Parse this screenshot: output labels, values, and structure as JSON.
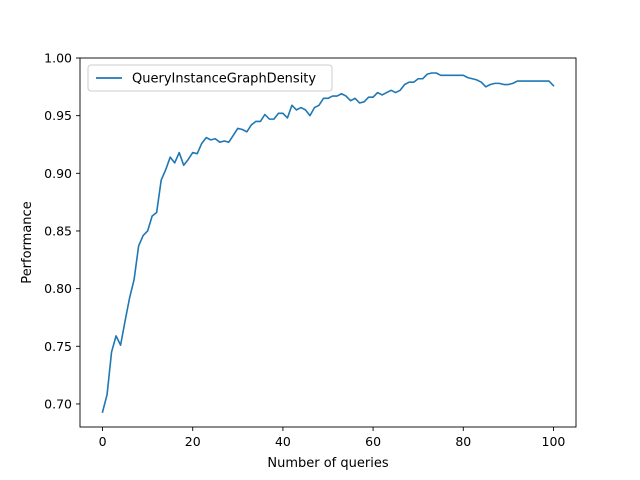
{
  "chart_data": {
    "type": "line",
    "title": "",
    "xlabel": "Number of queries",
    "ylabel": "Performance",
    "xlim": [
      -5,
      105
    ],
    "ylim": [
      0.68,
      1.0
    ],
    "xticks": [
      0,
      20,
      40,
      60,
      80,
      100
    ],
    "yticks": [
      0.7,
      0.75,
      0.8,
      0.85,
      0.9,
      0.95,
      1.0
    ],
    "grid": false,
    "legend_position": "upper-left",
    "series": [
      {
        "name": "QueryInstanceGraphDensity",
        "color": "#1f77b4",
        "x": [
          0,
          1,
          2,
          3,
          4,
          5,
          6,
          7,
          8,
          9,
          10,
          11,
          12,
          13,
          14,
          15,
          16,
          17,
          18,
          19,
          20,
          21,
          22,
          23,
          24,
          25,
          26,
          27,
          28,
          29,
          30,
          31,
          32,
          33,
          34,
          35,
          36,
          37,
          38,
          39,
          40,
          41,
          42,
          43,
          44,
          45,
          46,
          47,
          48,
          49,
          50,
          51,
          52,
          53,
          54,
          55,
          56,
          57,
          58,
          59,
          60,
          61,
          62,
          63,
          64,
          65,
          66,
          67,
          68,
          69,
          70,
          71,
          72,
          73,
          74,
          75,
          76,
          77,
          78,
          79,
          80,
          81,
          82,
          83,
          84,
          85,
          86,
          87,
          88,
          89,
          90,
          91,
          92,
          93,
          94,
          95,
          96,
          97,
          98,
          99,
          100
        ],
        "y": [
          0.693,
          0.708,
          0.745,
          0.759,
          0.751,
          0.772,
          0.792,
          0.808,
          0.837,
          0.846,
          0.85,
          0.863,
          0.866,
          0.894,
          0.903,
          0.914,
          0.909,
          0.918,
          0.907,
          0.912,
          0.918,
          0.917,
          0.926,
          0.931,
          0.929,
          0.93,
          0.927,
          0.928,
          0.927,
          0.933,
          0.939,
          0.938,
          0.936,
          0.942,
          0.945,
          0.945,
          0.951,
          0.947,
          0.947,
          0.952,
          0.952,
          0.948,
          0.959,
          0.955,
          0.957,
          0.955,
          0.95,
          0.957,
          0.959,
          0.965,
          0.965,
          0.967,
          0.967,
          0.969,
          0.967,
          0.963,
          0.965,
          0.961,
          0.962,
          0.966,
          0.966,
          0.97,
          0.968,
          0.97,
          0.972,
          0.97,
          0.972,
          0.977,
          0.979,
          0.979,
          0.982,
          0.982,
          0.986,
          0.987,
          0.987,
          0.985,
          0.985,
          0.985,
          0.985,
          0.985,
          0.985,
          0.983,
          0.982,
          0.981,
          0.979,
          0.975,
          0.977,
          0.978,
          0.978,
          0.977,
          0.977,
          0.978,
          0.98,
          0.98,
          0.98,
          0.98,
          0.98,
          0.98,
          0.98,
          0.98,
          0.976
        ]
      }
    ]
  }
}
